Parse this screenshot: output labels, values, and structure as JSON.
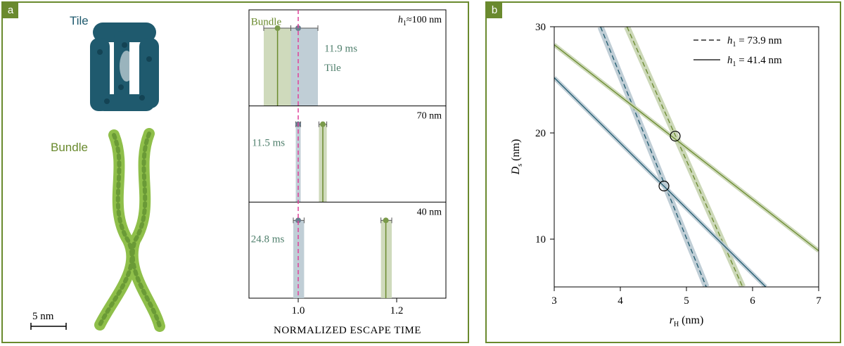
{
  "panel_a": {
    "tag": "a",
    "tile_label": "Tile",
    "bundle_label": "Bundle",
    "scale_bar_label": "5 nm"
  },
  "panel_b": {
    "tag": "b"
  },
  "colors": {
    "tile": "#1f5a6e",
    "tile_light": "#b9c9d1",
    "bundle": "#6a8a2e",
    "bundle_light": "#c7d4b0",
    "bundle_mol": "#8fbf4a",
    "frame": "#6a8a2e",
    "reference": "#e0409a",
    "annotation": "#4f7f6c"
  },
  "chart_data": [
    {
      "type": "bar",
      "panel": "a",
      "xlabel": "NORMALIZED ESCAPE TIME",
      "xlim": [
        0.9,
        1.3
      ],
      "xticks": [
        1.0,
        1.2
      ],
      "xtick_labels": [
        "1.0",
        "1.2"
      ],
      "reference_line_x": 1.0,
      "rows": [
        {
          "label_prefix": "h",
          "label_sub": "1",
          "label_suffix": "≈100 nm",
          "tile": {
            "value": 1.0,
            "low": 0.985,
            "high": 1.04
          },
          "bundle": {
            "value": 0.958,
            "low": 0.93,
            "high": 0.985
          },
          "annotations": [
            {
              "text": "Bundle",
              "color_key": "bundle",
              "x": 0.904,
              "y_frac": 0.12
            },
            {
              "text": "11.9 ms",
              "color_key": "annotation",
              "x": 1.053,
              "y_frac": 0.4
            },
            {
              "text": "Tile",
              "color_key": "annotation",
              "x": 1.053,
              "y_frac": 0.6
            }
          ]
        },
        {
          "label": "70 nm",
          "tile": {
            "value": 1.0,
            "low": 0.995,
            "high": 1.005
          },
          "bundle": {
            "value": 1.05,
            "low": 1.042,
            "high": 1.058
          },
          "annotations": [
            {
              "text": "11.5 ms",
              "color_key": "annotation",
              "x": 0.906,
              "y_frac": 0.38
            }
          ]
        },
        {
          "label": "40 nm",
          "tile": {
            "value": 1.0,
            "low": 0.99,
            "high": 1.012
          },
          "bundle": {
            "value": 1.178,
            "low": 1.168,
            "high": 1.19
          },
          "annotations": [
            {
              "text": "24.8 ms",
              "color_key": "annotation",
              "x": 0.904,
              "y_frac": 0.38
            }
          ]
        }
      ]
    },
    {
      "type": "line",
      "panel": "b",
      "xlabel": "r",
      "xlabel_sub": "H",
      "xlabel_unit": " (nm)",
      "ylabel": "D",
      "ylabel_sub": "s",
      "ylabel_unit": " (nm)",
      "xlim": [
        3,
        7
      ],
      "ylim": [
        5.5,
        30
      ],
      "xticks": [
        3,
        4,
        5,
        6,
        7
      ],
      "yticks": [
        10,
        20,
        30
      ],
      "legend": {
        "position": "top-right",
        "entries": [
          {
            "style": "dashed",
            "prefix": "h",
            "sub": "1",
            "suffix": " = 73.9 nm"
          },
          {
            "style": "solid",
            "prefix": "h",
            "sub": "1",
            "suffix": " = 41.4 nm"
          }
        ]
      },
      "series": [
        {
          "color_key": "tile",
          "style": "dashed",
          "x": [
            3.7,
            5.3
          ],
          "y": [
            30,
            5.5
          ]
        },
        {
          "color_key": "bundle",
          "style": "dashed",
          "x": [
            4.1,
            5.85
          ],
          "y": [
            30,
            5.5
          ]
        },
        {
          "color_key": "tile",
          "style": "solid",
          "x": [
            3,
            6.2
          ],
          "y": [
            25.2,
            5.5
          ]
        },
        {
          "color_key": "bundle",
          "style": "solid",
          "x": [
            3,
            7
          ],
          "y": [
            28.3,
            8.9
          ]
        }
      ],
      "intersections": [
        {
          "x": 4.66,
          "y": 15.0
        },
        {
          "x": 4.83,
          "y": 19.7
        }
      ]
    }
  ]
}
